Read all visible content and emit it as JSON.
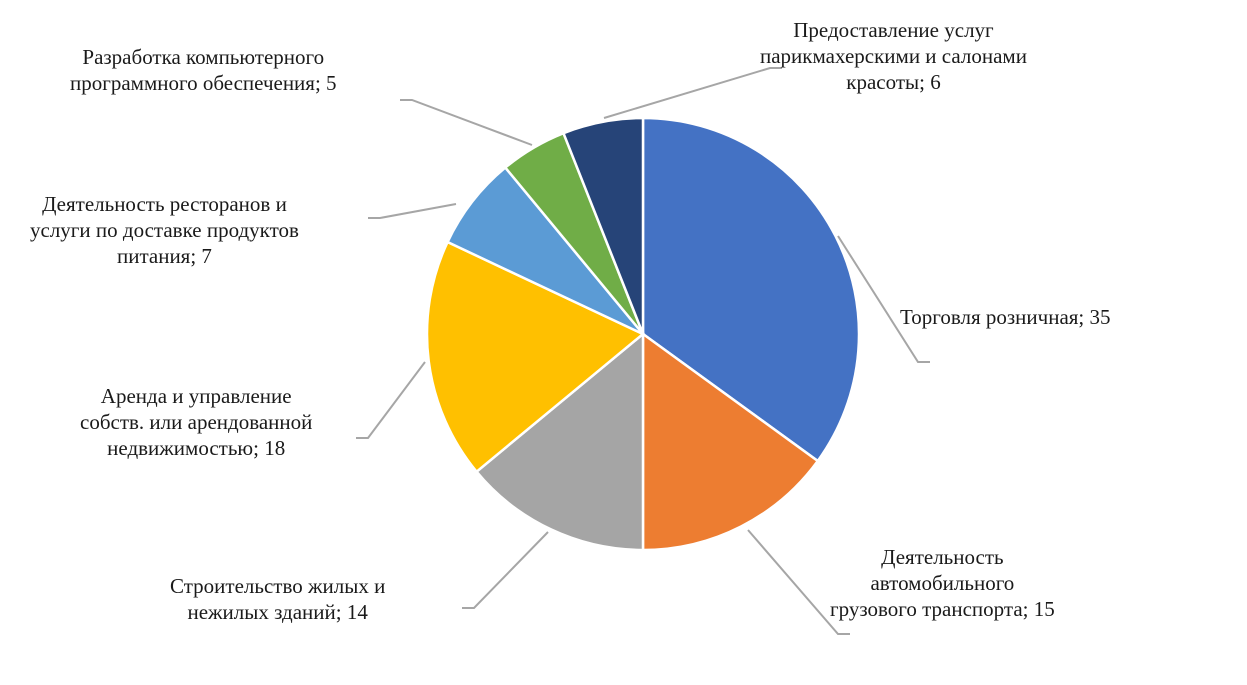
{
  "chart_data": {
    "type": "pie",
    "title": "",
    "slices": [
      {
        "label": "Торговля розничная; 35",
        "name": "Торговля розничная",
        "value": 35,
        "color": "#4472C4"
      },
      {
        "label": "Деятельность\nавтомобильного\nгрузового транспорта;  15",
        "name": "Деятельность автомобильного грузового транспорта",
        "value": 15,
        "color": "#ED7D31"
      },
      {
        "label": "Строительство жилых и\nнежилых зданий; 14",
        "name": "Строительство жилых и нежилых зданий",
        "value": 14,
        "color": "#A5A5A5"
      },
      {
        "label": "Аренда и управление\nсобств. или арендованной\nнедвижимостью; 18",
        "name": "Аренда и управление собств. или арендованной недвижимостью",
        "value": 18,
        "color": "#FFC000"
      },
      {
        "label": "Деятельность ресторанов и\nуслуги  по доставке продуктов\nпитания;  7",
        "name": "Деятельность ресторанов и услуги по доставке продуктов питания",
        "value": 7,
        "color": "#5B9BD5"
      },
      {
        "label": "Разработка компьютерного\nпрограммного обеспечения;  5",
        "name": "Разработка компьютерного программного обеспечения",
        "value": 5,
        "color": "#70AD47"
      },
      {
        "label": "Предоставление  услуг\nпарикмахерскими  и салонами\nкрасоты;  6",
        "name": "Предоставление услуг парикмахерскими и салонами красоты",
        "value": 6,
        "color": "#264478"
      }
    ],
    "legend": "none",
    "leader_line_color": "#A6A6A6"
  }
}
